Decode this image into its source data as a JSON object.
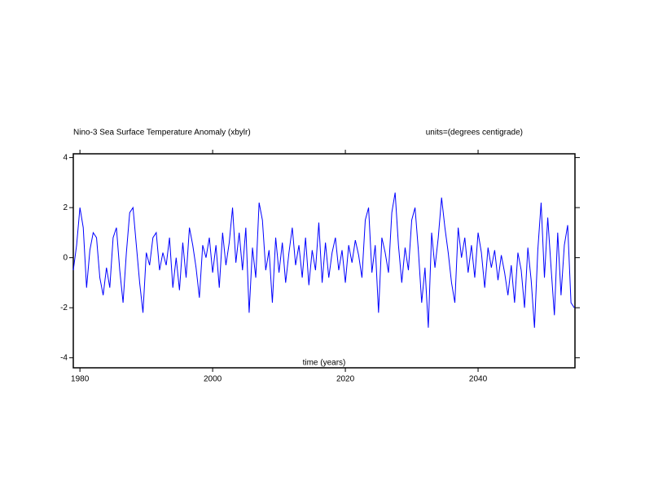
{
  "chart_data": {
    "type": "line",
    "title": "Nino-3 Sea Surface Temperature Anomaly (xbylr)",
    "subtitle": "units=(degrees centigrade)",
    "x_label": "time (years)",
    "x": [
      1979,
      1979.5,
      1980,
      1980.5,
      1981,
      1981.5,
      1982,
      1982.5,
      1983,
      1983.5,
      1984,
      1984.5,
      1985,
      1985.5,
      1986,
      1986.5,
      1987,
      1987.5,
      1988,
      1988.5,
      1989,
      1989.5,
      1990,
      1990.5,
      1991,
      1991.5,
      1992,
      1992.5,
      1993,
      1993.5,
      1994,
      1994.5,
      1995,
      1995.5,
      1996,
      1996.5,
      1997,
      1997.5,
      1998,
      1998.5,
      1999,
      1999.5,
      2000,
      2000.5,
      2001,
      2001.5,
      2002,
      2002.5,
      2003,
      2003.5,
      2004,
      2004.5,
      2005,
      2005.5,
      2006,
      2006.5,
      2007,
      2007.5,
      2008,
      2008.5,
      2009,
      2009.5,
      2010,
      2010.5,
      2011,
      2011.5,
      2012,
      2012.5,
      2013,
      2013.5,
      2014,
      2014.5,
      2015,
      2015.5,
      2016,
      2016.5,
      2017,
      2017.5,
      2018,
      2018.5,
      2019,
      2019.5,
      2020,
      2020.5,
      2021,
      2021.5,
      2022,
      2022.5,
      2023,
      2023.5,
      2024,
      2024.5,
      2025,
      2025.5,
      2026,
      2026.5,
      2027,
      2027.5,
      2028,
      2028.5,
      2029,
      2029.5,
      2030,
      2030.5,
      2031,
      2031.5,
      2032,
      2032.5,
      2033,
      2033.5,
      2034,
      2034.5,
      2035,
      2035.5,
      2036,
      2036.5,
      2037,
      2037.5,
      2038,
      2038.5,
      2039,
      2039.5,
      2040,
      2040.5,
      2041,
      2041.5,
      2042,
      2042.5,
      2043,
      2043.5,
      2044,
      2044.5,
      2045,
      2045.5,
      2046,
      2046.5,
      2047,
      2047.5,
      2048,
      2048.5,
      2049,
      2049.5,
      2050,
      2050.5,
      2051,
      2051.5,
      2052,
      2052.5,
      2053,
      2053.5,
      2054,
      2054.5
    ],
    "series": [
      {
        "color": "#0000ff",
        "values": [
          -0.5,
          0.5,
          2.0,
          1.2,
          -1.2,
          0.3,
          1.0,
          0.8,
          -0.8,
          -1.5,
          -0.4,
          -1.2,
          0.8,
          1.2,
          -0.5,
          -1.8,
          0.2,
          1.8,
          2.0,
          0.5,
          -1.0,
          -2.2,
          0.2,
          -0.3,
          0.8,
          1.0,
          -0.5,
          0.2,
          -0.3,
          0.8,
          -1.2,
          0.0,
          -1.3,
          0.6,
          -0.8,
          1.2,
          0.5,
          -0.4,
          -1.6,
          0.5,
          0.0,
          0.8,
          -0.6,
          0.5,
          -1.2,
          1.0,
          -0.3,
          0.6,
          2.0,
          -0.2,
          1.0,
          -0.5,
          1.2,
          -2.2,
          0.4,
          -0.8,
          2.2,
          1.5,
          -0.5,
          0.3,
          -1.8,
          0.8,
          -0.6,
          0.6,
          -1.0,
          0.2,
          1.2,
          -0.3,
          0.5,
          -0.8,
          0.8,
          -1.1,
          0.3,
          -0.5,
          1.4,
          -1.0,
          0.6,
          -0.8,
          0.2,
          0.8,
          -0.5,
          0.3,
          -1.0,
          0.5,
          -0.2,
          0.7,
          0.1,
          -0.8,
          1.5,
          2.0,
          -0.6,
          0.5,
          -2.2,
          0.8,
          0.2,
          -0.6,
          1.8,
          2.6,
          0.5,
          -1.0,
          0.4,
          -0.5,
          1.5,
          2.0,
          0.3,
          -1.8,
          -0.4,
          -2.8,
          1.0,
          -0.4,
          0.8,
          2.4,
          1.2,
          0.2,
          -1.0,
          -1.8,
          1.2,
          0.0,
          0.8,
          -0.6,
          0.5,
          -0.8,
          1.0,
          0.2,
          -1.2,
          0.4,
          -0.4,
          0.3,
          -0.9,
          0.1,
          -0.6,
          -1.5,
          -0.3,
          -1.8,
          0.2,
          -0.5,
          -2.0,
          0.4,
          -0.9,
          -2.8,
          0.3,
          2.2,
          -0.8,
          1.6,
          -0.4,
          -2.3,
          1.0,
          -1.5,
          0.5,
          1.3,
          -1.8,
          -2.0
        ]
      }
    ],
    "xlim": [
      1979,
      2054.6
    ],
    "xticks": [
      1980,
      2000,
      2020,
      2040
    ],
    "ylim": [
      -4.4,
      4.15
    ],
    "yticks": [
      -4,
      -2,
      0,
      2,
      4
    ]
  }
}
